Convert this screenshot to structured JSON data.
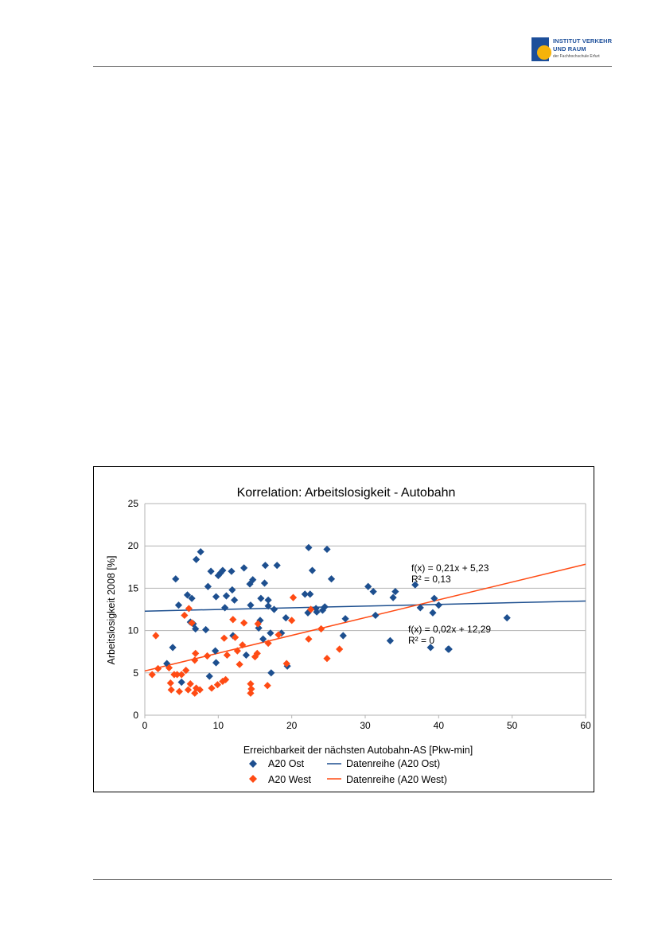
{
  "header": {
    "logo": {
      "line1": "INSTITUT VERKEHR",
      "line2": "UND RAUM",
      "line3": "der Fachhochschule Erfurt",
      "colors": {
        "square": "#1d4f9a",
        "circle": "#f6b30a"
      }
    }
  },
  "chart_data": {
    "type": "scatter",
    "title": "Korrelation: Arbeitslosigkeit - Autobahn",
    "xlabel": "Erreichbarkeit der nächsten Autobahn-AS [Pkw-min]",
    "ylabel": "Arbeitslosigkeit 2008 [%]",
    "xlim": [
      0,
      60
    ],
    "ylim": [
      0,
      25
    ],
    "xticks": [
      0,
      10,
      20,
      30,
      40,
      50,
      60
    ],
    "yticks": [
      0,
      5,
      10,
      15,
      20,
      25
    ],
    "grid": "horizontal",
    "legend_position": "bottom",
    "series": [
      {
        "name": "A20 Ost",
        "color": "#1d4f8f",
        "marker": "diamond",
        "points": [
          [
            3,
            6.1
          ],
          [
            3.8,
            8
          ],
          [
            4.2,
            16.1
          ],
          [
            4.6,
            13
          ],
          [
            5,
            3.9
          ],
          [
            5.8,
            14.2
          ],
          [
            6.2,
            11
          ],
          [
            6.4,
            13.8
          ],
          [
            6.6,
            10.8
          ],
          [
            6.9,
            10.2
          ],
          [
            7,
            18.4
          ],
          [
            7.6,
            19.3
          ],
          [
            8.3,
            10.1
          ],
          [
            8.8,
            4.6
          ],
          [
            8.6,
            15.2
          ],
          [
            9,
            17
          ],
          [
            9.6,
            7.6
          ],
          [
            9.7,
            6.2
          ],
          [
            9.7,
            14
          ],
          [
            10,
            16.5
          ],
          [
            10.3,
            16.8
          ],
          [
            10.9,
            12.7
          ],
          [
            10.6,
            17.1
          ],
          [
            11.1,
            14.1
          ],
          [
            11.8,
            17
          ],
          [
            11.9,
            14.8
          ],
          [
            12,
            9.4
          ],
          [
            12.2,
            13.6
          ],
          [
            13.5,
            17.4
          ],
          [
            13.8,
            7.1
          ],
          [
            14.3,
            15.5
          ],
          [
            14.4,
            13
          ],
          [
            14.7,
            16
          ],
          [
            15.5,
            10.3
          ],
          [
            15.7,
            11.2
          ],
          [
            15.8,
            13.8
          ],
          [
            16.1,
            9
          ],
          [
            16.3,
            15.6
          ],
          [
            16.4,
            17.7
          ],
          [
            16.8,
            13.6
          ],
          [
            16.8,
            12.9
          ],
          [
            17.1,
            9.7
          ],
          [
            17.2,
            5
          ],
          [
            17.6,
            12.5
          ],
          [
            18,
            17.7
          ],
          [
            18.6,
            9.7
          ],
          [
            19.2,
            11.5
          ],
          [
            19.4,
            5.8
          ],
          [
            21.8,
            14.3
          ],
          [
            22.2,
            12.1
          ],
          [
            22.3,
            19.8
          ],
          [
            22.5,
            14.3
          ],
          [
            22.8,
            17.1
          ],
          [
            23.4,
            12.2
          ],
          [
            23.3,
            12.6
          ],
          [
            24.2,
            12.4
          ],
          [
            24.5,
            12.8
          ],
          [
            24.8,
            19.6
          ],
          [
            25.4,
            16.1
          ],
          [
            27,
            9.4
          ],
          [
            27.3,
            11.4
          ],
          [
            30.4,
            15.2
          ],
          [
            31.1,
            14.6
          ],
          [
            31.4,
            11.8
          ],
          [
            33.4,
            8.8
          ],
          [
            33.8,
            13.9
          ],
          [
            34.1,
            14.6
          ],
          [
            36.8,
            15.4
          ],
          [
            37.5,
            12.7
          ],
          [
            38.9,
            8
          ],
          [
            39.2,
            12.1
          ],
          [
            39.4,
            13.8
          ],
          [
            40,
            13
          ],
          [
            41.3,
            7.8
          ],
          [
            41.4,
            7.8
          ],
          [
            49.3,
            11.5
          ]
        ]
      },
      {
        "name": "A20 West",
        "color": "#ff4b14",
        "marker": "diamond",
        "points": [
          [
            1,
            4.8
          ],
          [
            1.5,
            9.4
          ],
          [
            1.8,
            5.5
          ],
          [
            3.3,
            5.6
          ],
          [
            3.5,
            3.8
          ],
          [
            3.6,
            3
          ],
          [
            4,
            4.8
          ],
          [
            4.4,
            4.8
          ],
          [
            4.7,
            2.8
          ],
          [
            5,
            4.8
          ],
          [
            5.4,
            11.8
          ],
          [
            5.6,
            5.3
          ],
          [
            6,
            12.6
          ],
          [
            5.9,
            3
          ],
          [
            6.2,
            3.7
          ],
          [
            6.4,
            10.9
          ],
          [
            6.8,
            2.6
          ],
          [
            7,
            3.2
          ],
          [
            6.8,
            6.5
          ],
          [
            6.9,
            7.3
          ],
          [
            7.5,
            3
          ],
          [
            8.5,
            7
          ],
          [
            9.1,
            3.2
          ],
          [
            9.9,
            3.6
          ],
          [
            10.6,
            4
          ],
          [
            10.8,
            9.1
          ],
          [
            11.2,
            7.1
          ],
          [
            11,
            4.2
          ],
          [
            12,
            11.3
          ],
          [
            12.3,
            9.2
          ],
          [
            12.6,
            7.6
          ],
          [
            12.9,
            6
          ],
          [
            13.3,
            8.3
          ],
          [
            13.5,
            10.9
          ],
          [
            14.4,
            3.7
          ],
          [
            14.4,
            2.6
          ],
          [
            14.5,
            3.1
          ],
          [
            15,
            6.9
          ],
          [
            15.3,
            7.3
          ],
          [
            15.4,
            10.8
          ],
          [
            16.7,
            3.5
          ],
          [
            16.8,
            8.5
          ],
          [
            18.2,
            9.5
          ],
          [
            19.3,
            6.1
          ],
          [
            20,
            11.2
          ],
          [
            20.2,
            13.9
          ],
          [
            22.3,
            9
          ],
          [
            22.6,
            12.5
          ],
          [
            24,
            10.2
          ],
          [
            24.8,
            6.7
          ],
          [
            26.5,
            7.8
          ]
        ]
      },
      {
        "name": "Datenreihe (A20 Ost)",
        "type": "line",
        "color": "#1d4f8f",
        "slope": 0.02,
        "intercept": 12.29,
        "equation": "f(x) = 0,02x + 12,29",
        "r2": "R² = 0"
      },
      {
        "name": "Datenreihe (A20 West)",
        "type": "line",
        "color": "#ff4b14",
        "slope": 0.21,
        "intercept": 5.23,
        "equation": "f(x) = 0,21x + 5,23",
        "r2": "R² = 0,13"
      }
    ]
  }
}
